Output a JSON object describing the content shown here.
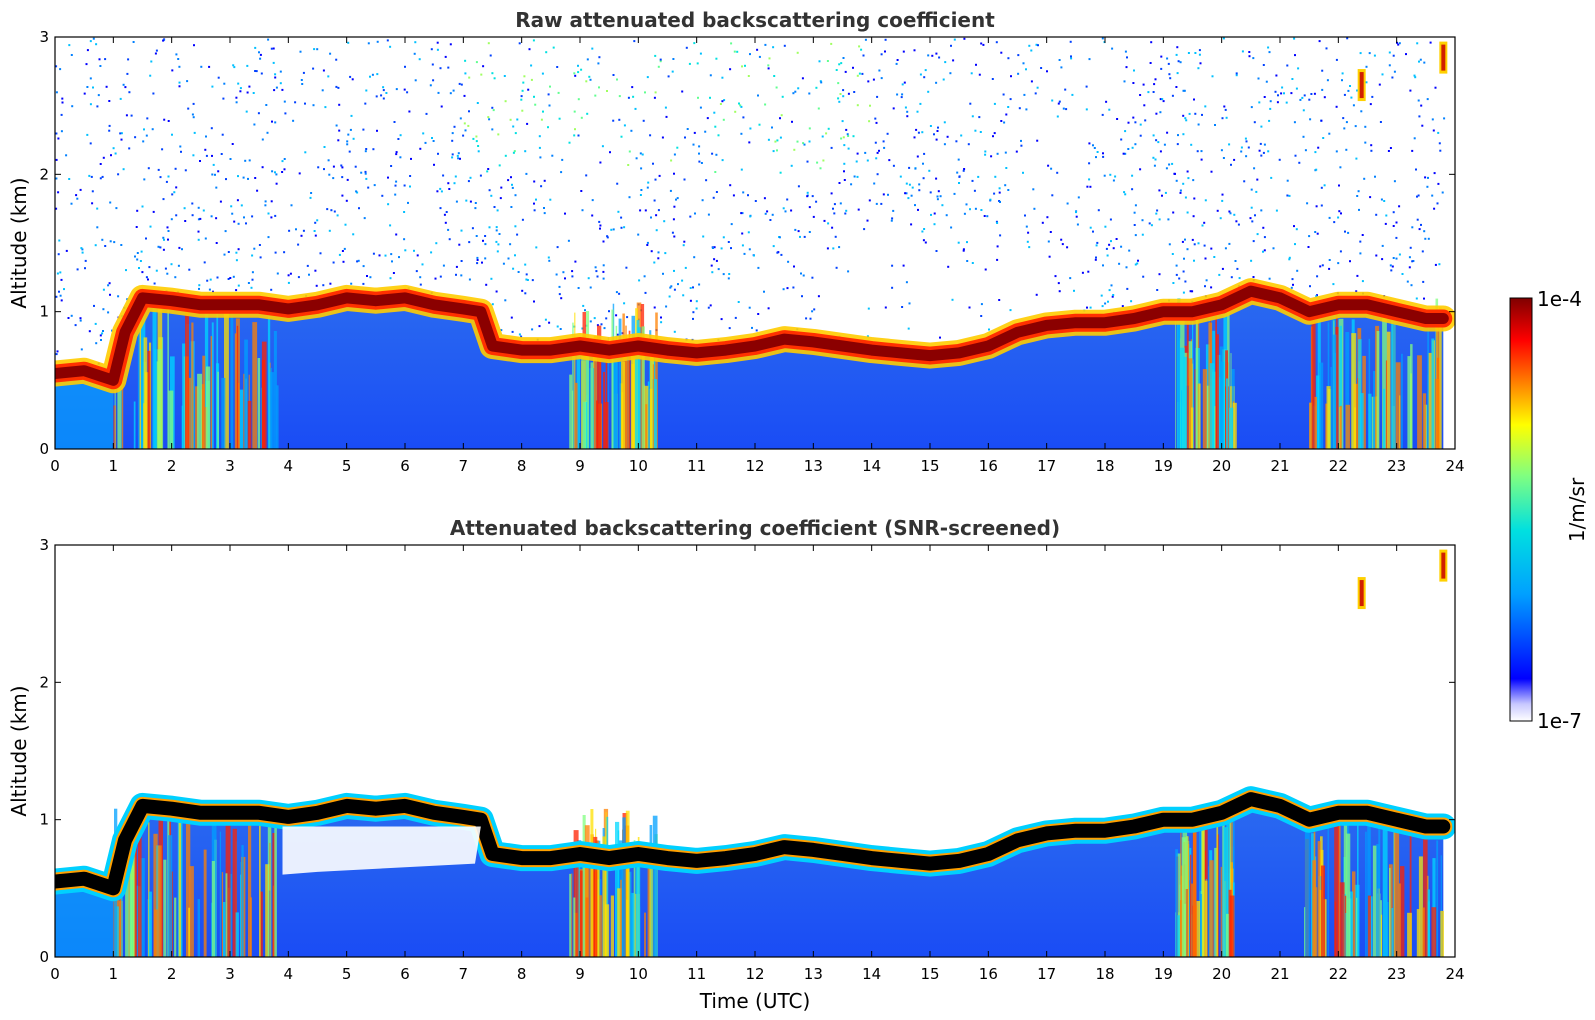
{
  "colors": {
    "colormap": [
      "#ffffff",
      "#0000ff",
      "#00a0ff",
      "#00e0e0",
      "#80ff80",
      "#ffff00",
      "#ff8000",
      "#ff0000",
      "#800000"
    ],
    "screened_core": "#000000"
  },
  "chart_data": [
    {
      "type": "heatmap",
      "title": "Raw attenuated backscattering coefficient",
      "xlabel": "",
      "ylabel": "Altitude (km)",
      "xlim": [
        0,
        24
      ],
      "ylim": [
        0,
        3
      ],
      "xticks": [
        "0",
        "1",
        "2",
        "3",
        "4",
        "5",
        "6",
        "7",
        "8",
        "9",
        "10",
        "11",
        "12",
        "13",
        "14",
        "15",
        "16",
        "17",
        "18",
        "19",
        "20",
        "21",
        "22",
        "23",
        "24"
      ],
      "yticks": [
        "0",
        "1",
        "2",
        "3"
      ],
      "layer_top_km": {
        "time_utc": [
          0,
          0.5,
          1.0,
          1.2,
          1.5,
          2.0,
          2.5,
          3.0,
          3.5,
          4.0,
          4.5,
          5.0,
          5.5,
          6.0,
          6.5,
          7.0,
          7.3,
          7.5,
          8.0,
          8.5,
          9.0,
          9.5,
          10.0,
          10.5,
          11.0,
          11.5,
          12.0,
          12.5,
          13.0,
          13.5,
          14.0,
          14.5,
          15.0,
          15.5,
          16.0,
          16.5,
          17.0,
          17.5,
          18.0,
          18.5,
          19.0,
          19.5,
          20.0,
          20.5,
          21.0,
          21.5,
          22.0,
          22.5,
          23.0,
          23.5,
          23.8
        ],
        "altitude_km": [
          0.55,
          0.57,
          0.5,
          0.85,
          1.1,
          1.08,
          1.05,
          1.05,
          1.05,
          1.02,
          1.05,
          1.1,
          1.08,
          1.1,
          1.05,
          1.02,
          1.0,
          0.75,
          0.72,
          0.72,
          0.75,
          0.72,
          0.75,
          0.72,
          0.7,
          0.72,
          0.75,
          0.8,
          0.78,
          0.75,
          0.72,
          0.7,
          0.68,
          0.7,
          0.75,
          0.85,
          0.9,
          0.92,
          0.92,
          0.95,
          1.0,
          1.0,
          1.05,
          1.15,
          1.1,
          1.0,
          1.05,
          1.05,
          1.0,
          0.95,
          0.95
        ]
      },
      "elevated_features": [
        {
          "time_utc": 22.4,
          "altitude_km": 2.65
        },
        {
          "time_utc": 23.8,
          "altitude_km": 2.85
        }
      ]
    },
    {
      "type": "heatmap",
      "title": "Attenuated backscattering coefficient (SNR-screened)",
      "xlabel": "Time (UTC)",
      "ylabel": "Altitude (km)",
      "xlim": [
        0,
        24
      ],
      "ylim": [
        0,
        3
      ],
      "xticks": [
        "0",
        "1",
        "2",
        "3",
        "4",
        "5",
        "6",
        "7",
        "8",
        "9",
        "10",
        "11",
        "12",
        "13",
        "14",
        "15",
        "16",
        "17",
        "18",
        "19",
        "20",
        "21",
        "22",
        "23",
        "24"
      ],
      "yticks": [
        "0",
        "1",
        "2",
        "3"
      ]
    }
  ],
  "colorbar": {
    "label": "1/m/sr",
    "max_label": "1e-4",
    "min_label": "1e-7",
    "range": [
      1e-07,
      0.0001
    ],
    "scale": "log"
  }
}
